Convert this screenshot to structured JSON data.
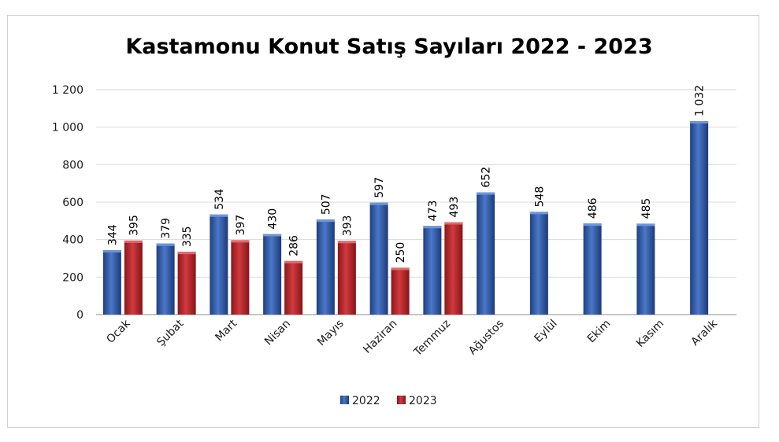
{
  "chart_data": {
    "type": "bar",
    "title": "Kastamonu Konut Satış Sayıları 2022 - 2023",
    "xlabel": "",
    "ylabel": "",
    "categories": [
      "Ocak",
      "Şubat",
      "Mart",
      "Nisan",
      "Mayıs",
      "Haziran",
      "Temmuz",
      "Ağustos",
      "Eylül",
      "Ekim",
      "Kasım",
      "Aralık"
    ],
    "series": [
      {
        "name": "2022",
        "color": "#2f56a3",
        "values": [
          344,
          379,
          534,
          430,
          507,
          597,
          473,
          652,
          548,
          486,
          485,
          1032
        ],
        "labels": [
          "344",
          "379",
          "534",
          "430",
          "507",
          "597",
          "473",
          "652",
          "548",
          "486",
          "485",
          "1 032"
        ]
      },
      {
        "name": "2023",
        "color": "#b42429",
        "values": [
          395,
          335,
          397,
          286,
          393,
          250,
          493,
          null,
          null,
          null,
          null,
          null
        ],
        "labels": [
          "395",
          "335",
          "397",
          "286",
          "393",
          "250",
          "493",
          "",
          "",
          "",
          "",
          ""
        ]
      }
    ],
    "ylim": [
      0,
      1200
    ],
    "yticks": [
      0,
      200,
      400,
      600,
      800,
      1000,
      1200
    ],
    "ytick_labels": [
      "0",
      "200",
      "400",
      "600",
      "800",
      "1 000",
      "1 200"
    ],
    "grid": true,
    "legend_position": "bottom"
  }
}
